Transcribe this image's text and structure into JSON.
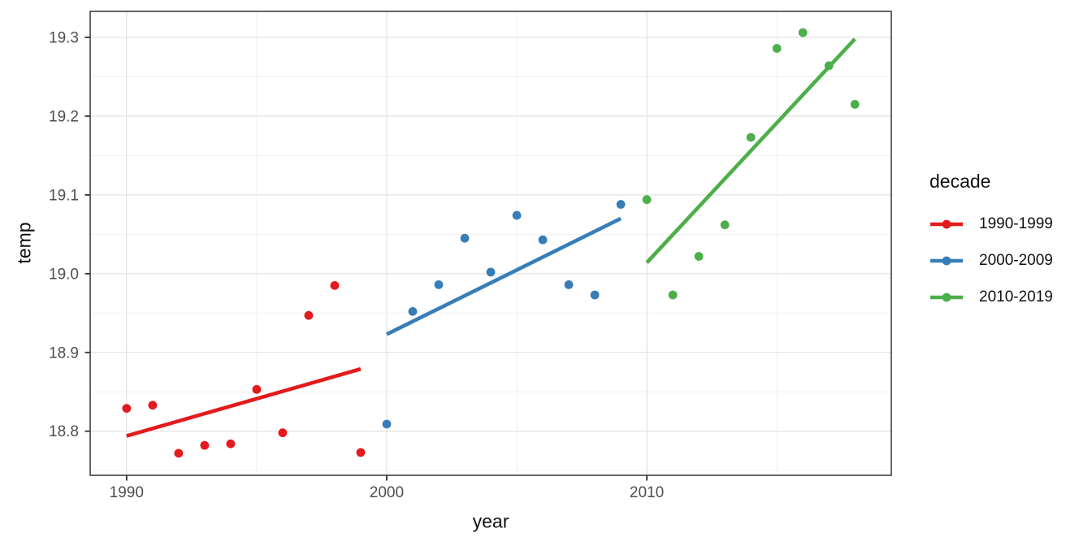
{
  "chart_data": {
    "type": "scatter",
    "title": "",
    "xlabel": "year",
    "ylabel": "temp",
    "xlim": [
      1988.6,
      2019.4
    ],
    "ylim": [
      18.744,
      19.333
    ],
    "grid": true,
    "x_ticks": [
      {
        "value": 1990,
        "label": "1990"
      },
      {
        "value": 2000,
        "label": "2000"
      },
      {
        "value": 2010,
        "label": "2010"
      }
    ],
    "x_minor_values": [
      1995,
      2005,
      2015
    ],
    "y_ticks": [
      {
        "value": 18.8,
        "label": "18.8"
      },
      {
        "value": 18.9,
        "label": "18.9"
      },
      {
        "value": 19.0,
        "label": "19.0"
      },
      {
        "value": 19.1,
        "label": "19.1"
      },
      {
        "value": 19.2,
        "label": "19.2"
      },
      {
        "value": 19.3,
        "label": "19.3"
      }
    ],
    "y_minor_values": [
      18.75,
      18.85,
      18.95,
      19.05,
      19.15,
      19.25
    ],
    "legend": {
      "title": "decade",
      "position": "right"
    },
    "series": [
      {
        "name": "1990-1999",
        "color": "#E41A1C",
        "x": [
          1990,
          1991,
          1992,
          1993,
          1994,
          1995,
          1996,
          1997,
          1998,
          1999
        ],
        "y": [
          18.829,
          18.833,
          18.772,
          18.782,
          18.784,
          18.853,
          18.798,
          18.947,
          18.985,
          18.773
        ],
        "trend": {
          "x": [
            1990,
            1999
          ],
          "y": [
            18.794,
            18.879
          ]
        }
      },
      {
        "name": "2000-2009",
        "color": "#377EB8",
        "x": [
          2000,
          2001,
          2002,
          2003,
          2004,
          2005,
          2006,
          2007,
          2008,
          2009
        ],
        "y": [
          18.809,
          18.952,
          18.986,
          19.045,
          19.002,
          19.074,
          19.043,
          18.986,
          18.973,
          19.088
        ],
        "trend": {
          "x": [
            2000,
            2009
          ],
          "y": [
            18.923,
            19.07
          ]
        }
      },
      {
        "name": "2010-2019",
        "color": "#4DAF4A",
        "x": [
          2010,
          2011,
          2012,
          2013,
          2014,
          2015,
          2016,
          2017,
          2018
        ],
        "y": [
          19.094,
          18.973,
          19.022,
          19.062,
          19.173,
          19.286,
          19.306,
          19.264,
          19.215
        ],
        "trend": {
          "x": [
            2010,
            2018
          ],
          "y": [
            19.014,
            19.298
          ]
        }
      }
    ]
  }
}
